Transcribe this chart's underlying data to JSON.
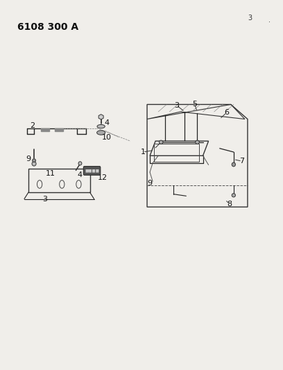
{
  "title": "6108 300 A",
  "background_color": "#f0eeea",
  "fig_width": 4.08,
  "fig_height": 5.33,
  "dpi": 100,
  "label_fontsize": 8,
  "title_fontsize": 10
}
